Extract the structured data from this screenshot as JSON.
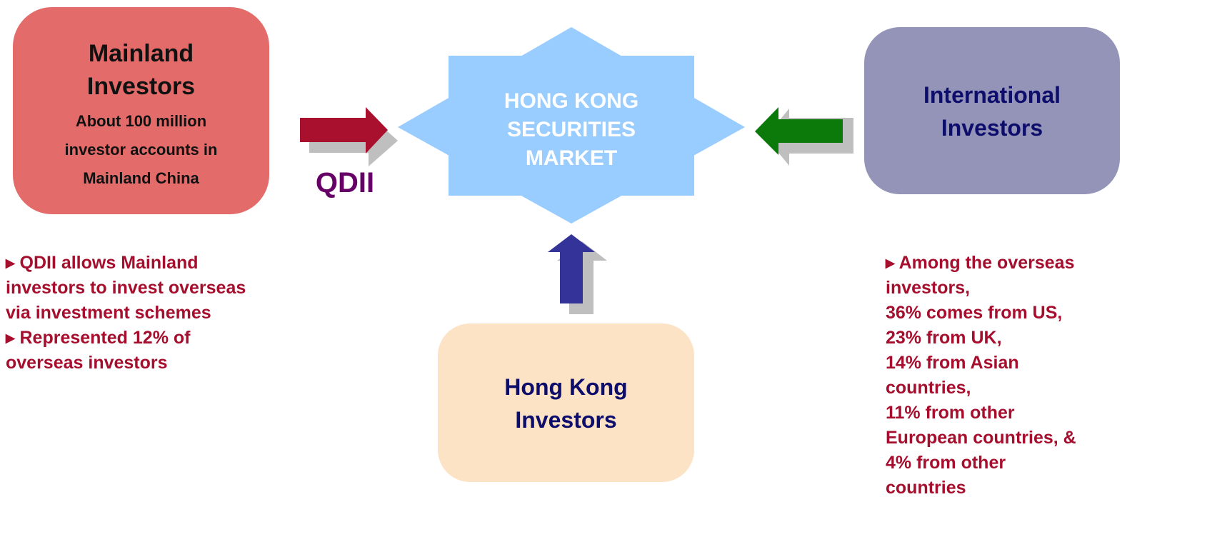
{
  "mainland": {
    "title": [
      "Mainland",
      "Investors"
    ],
    "detail": [
      "About 100 million",
      "investor accounts in",
      "Mainland China"
    ]
  },
  "qdii_label": "QDII",
  "center": {
    "label": [
      "HONG KONG",
      "SECURITIES",
      "MARKET"
    ]
  },
  "international": {
    "title": [
      "International",
      "Investors"
    ]
  },
  "hong_kong": {
    "title": [
      "Hong Kong",
      "Investors"
    ]
  },
  "left_notes": [
    "▸ QDII allows Mainland",
    "investors to invest overseas",
    "via investment schemes",
    "▸ Represented 12% of",
    "overseas investors"
  ],
  "right_notes": [
    "▸ Among the overseas",
    "investors,",
    "36% comes from US,",
    "23% from UK,",
    "14% from Asian",
    "countries,",
    "11% from other",
    "European countries, &",
    "4% from other",
    "countries"
  ]
}
